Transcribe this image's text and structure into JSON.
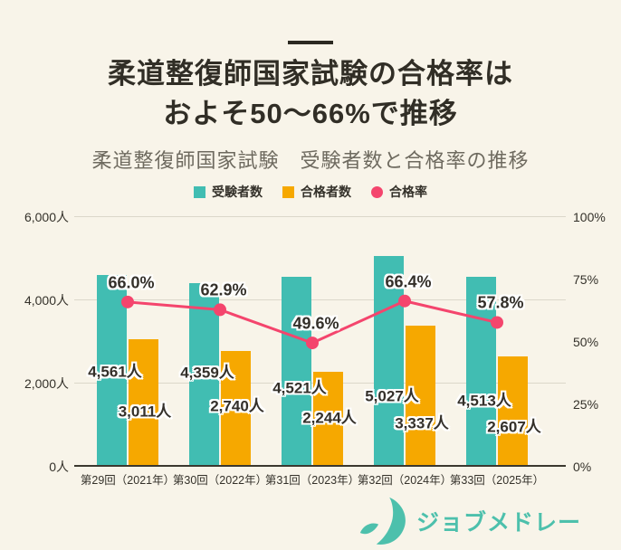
{
  "title": {
    "line1": "柔道整復師国家試験の合格率は",
    "line2": "およそ50～66%で推移"
  },
  "subtitle": "柔道整復師国家試験　受験者数と合格率の推移",
  "legend": [
    {
      "label": "受験者数",
      "color": "#41BDB2",
      "shape": "square"
    },
    {
      "label": "合格者数",
      "color": "#F6A800",
      "shape": "circle-none-square"
    },
    {
      "label": "合格率",
      "color": "#F4456D",
      "shape": "circle"
    }
  ],
  "colors": {
    "examinees_bar": "#41BDB2",
    "passers_bar": "#F6A800",
    "pass_rate_line": "#F4456D",
    "background": "#F8F4E9",
    "logo": "#4DC0AC"
  },
  "chart_data": {
    "type": "bar",
    "subtype": "grouped-bars-with-line",
    "title": "柔道整復師国家試験　受験者数と合格率の推移",
    "categories": [
      "第29回（2021年）",
      "第30回（2022年）",
      "第31回（2023年）",
      "第32回（2024年）",
      "第33回（2025年）"
    ],
    "series": [
      {
        "name": "受験者数",
        "type": "bar",
        "axis": "left",
        "color": "#41BDB2",
        "values": [
          4561,
          4359,
          4521,
          5027,
          4513
        ],
        "labels": [
          "4,561人",
          "4,359人",
          "4,521人",
          "5,027人",
          "4,513人"
        ]
      },
      {
        "name": "合格者数",
        "type": "bar",
        "axis": "left",
        "color": "#F6A800",
        "values": [
          3011,
          2740,
          2244,
          3337,
          2607
        ],
        "labels": [
          "3,011人",
          "2,740人",
          "2,244人",
          "3,337人",
          "2,607人"
        ]
      },
      {
        "name": "合格率",
        "type": "line",
        "axis": "right",
        "color": "#F4456D",
        "values": [
          66.0,
          62.9,
          49.6,
          66.4,
          57.8
        ],
        "labels": [
          "66.0%",
          "62.9%",
          "49.6%",
          "66.4%",
          "57.8%"
        ]
      }
    ],
    "left_axis": {
      "max": 6000,
      "min": 0,
      "ticks": [
        {
          "label": "6,000人",
          "value": 6000
        },
        {
          "label": "4,000人",
          "value": 4000
        },
        {
          "label": "2,000人",
          "value": 2000
        },
        {
          "label": "0人",
          "value": 0
        }
      ],
      "gridlines": [
        6000,
        4000,
        2000
      ]
    },
    "right_axis": {
      "max": 100,
      "min": 0,
      "ticks": [
        {
          "label": "100%",
          "value": 100
        },
        {
          "label": "75%",
          "value": 75
        },
        {
          "label": "50%",
          "value": 50
        },
        {
          "label": "25%",
          "value": 25
        },
        {
          "label": "0%",
          "value": 0
        }
      ]
    },
    "legend_position": "top",
    "grid": true
  },
  "footer": {
    "logo_text": "ジョブメドレー"
  }
}
